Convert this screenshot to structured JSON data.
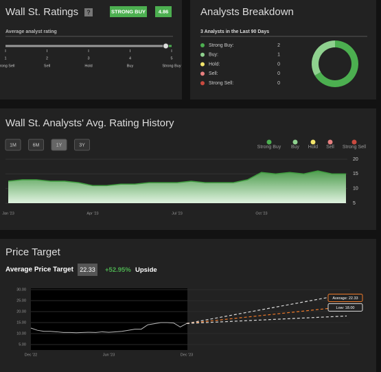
{
  "ratings": {
    "title": "Wall St. Ratings",
    "help": "?",
    "rating_label": "STRONG BUY",
    "rating": 4.86,
    "subtitle": "Average analyst rating",
    "scale_lim": [
      1,
      5
    ],
    "scale_ticks": [
      1,
      2,
      3,
      4,
      5
    ],
    "scale_labels": [
      "Strong Sell",
      "Sell",
      "Hold",
      "Buy",
      "Strong Buy"
    ]
  },
  "breakdown": {
    "title": "Analysts Breakdown",
    "subtitle": "3 Analysts in the Last 90 Days",
    "items": [
      {
        "name": "Strong Buy:",
        "value": 2,
        "color": "#4caf50"
      },
      {
        "name": "Buy:",
        "value": 1,
        "color": "#8fd18f"
      },
      {
        "name": "Hold:",
        "value": 0,
        "color": "#f2e46b"
      },
      {
        "name": "Sell:",
        "value": 0,
        "color": "#e88080"
      },
      {
        "name": "Strong Sell:",
        "value": 0,
        "color": "#c94a3f"
      }
    ]
  },
  "chart_data": [
    {
      "type": "area",
      "title": "Wall St. Analysts' Avg. Rating History",
      "ranges": [
        "1M",
        "6M",
        "1Y",
        "3Y"
      ],
      "active_range": "1Y",
      "legend": [
        {
          "name": "Strong Buy",
          "color": "#4caf50"
        },
        {
          "name": "Buy",
          "color": "#8fd18f"
        },
        {
          "name": "Hold",
          "color": "#f2e46b"
        },
        {
          "name": "Sell",
          "color": "#e88080"
        },
        {
          "name": "Strong Sell",
          "color": "#c94a3f"
        }
      ],
      "categories": [
        "Jan '23",
        null,
        null,
        null,
        null,
        null,
        "Apr '23",
        null,
        null,
        null,
        null,
        null,
        "Jul '23",
        null,
        null,
        null,
        null,
        null,
        "Oct '23",
        null,
        null,
        null,
        null,
        null,
        null
      ],
      "values": [
        12.5,
        13,
        13,
        12.5,
        12.5,
        12,
        11,
        11,
        11.5,
        11.5,
        12,
        12,
        12,
        12.5,
        12,
        12,
        12,
        13,
        15.5,
        15,
        15.5,
        15,
        16,
        15,
        15
      ],
      "color": "#3f9b3f",
      "ylim": [
        5,
        20
      ],
      "yticks": [
        5,
        10,
        15,
        20
      ]
    },
    {
      "type": "line",
      "title": "Price Target",
      "target_label": "Average Price Target",
      "target": 22.33,
      "upside": "+52.95%",
      "upside_label": "Upside",
      "categories": [
        "Dec '22",
        null,
        null,
        null,
        null,
        null,
        null,
        null,
        null,
        null,
        null,
        null,
        "Jun '23",
        null,
        null,
        null,
        null,
        null,
        null,
        null,
        null,
        null,
        null,
        null,
        "Dec '23"
      ],
      "values": [
        12.5,
        11.5,
        11,
        11,
        10.8,
        10.5,
        10.5,
        10.4,
        10.5,
        10.6,
        10.5,
        10.8,
        10.6,
        10.8,
        11,
        11.5,
        12,
        12,
        14,
        14.5,
        15,
        15,
        14.8,
        13,
        14.6
      ],
      "color": "#bbbbbb",
      "ylim": [
        5,
        30
      ],
      "yticks": [
        {
          "value": 5,
          "label": "5.00"
        },
        {
          "value": 10,
          "label": "10.00"
        },
        {
          "value": 15,
          "label": "15.00"
        },
        {
          "value": 20,
          "label": "20.00"
        },
        {
          "value": 25,
          "label": "25.00"
        },
        {
          "value": 30,
          "label": "30.00"
        }
      ],
      "projections": [
        {
          "value": 28,
          "color": "#dddddd"
        },
        {
          "value": 22.33,
          "label": "Average: 22.33",
          "color": "#f07b2a"
        },
        {
          "value": 18,
          "label": "Low: 18.00",
          "color": "#dddddd"
        }
      ]
    }
  ]
}
